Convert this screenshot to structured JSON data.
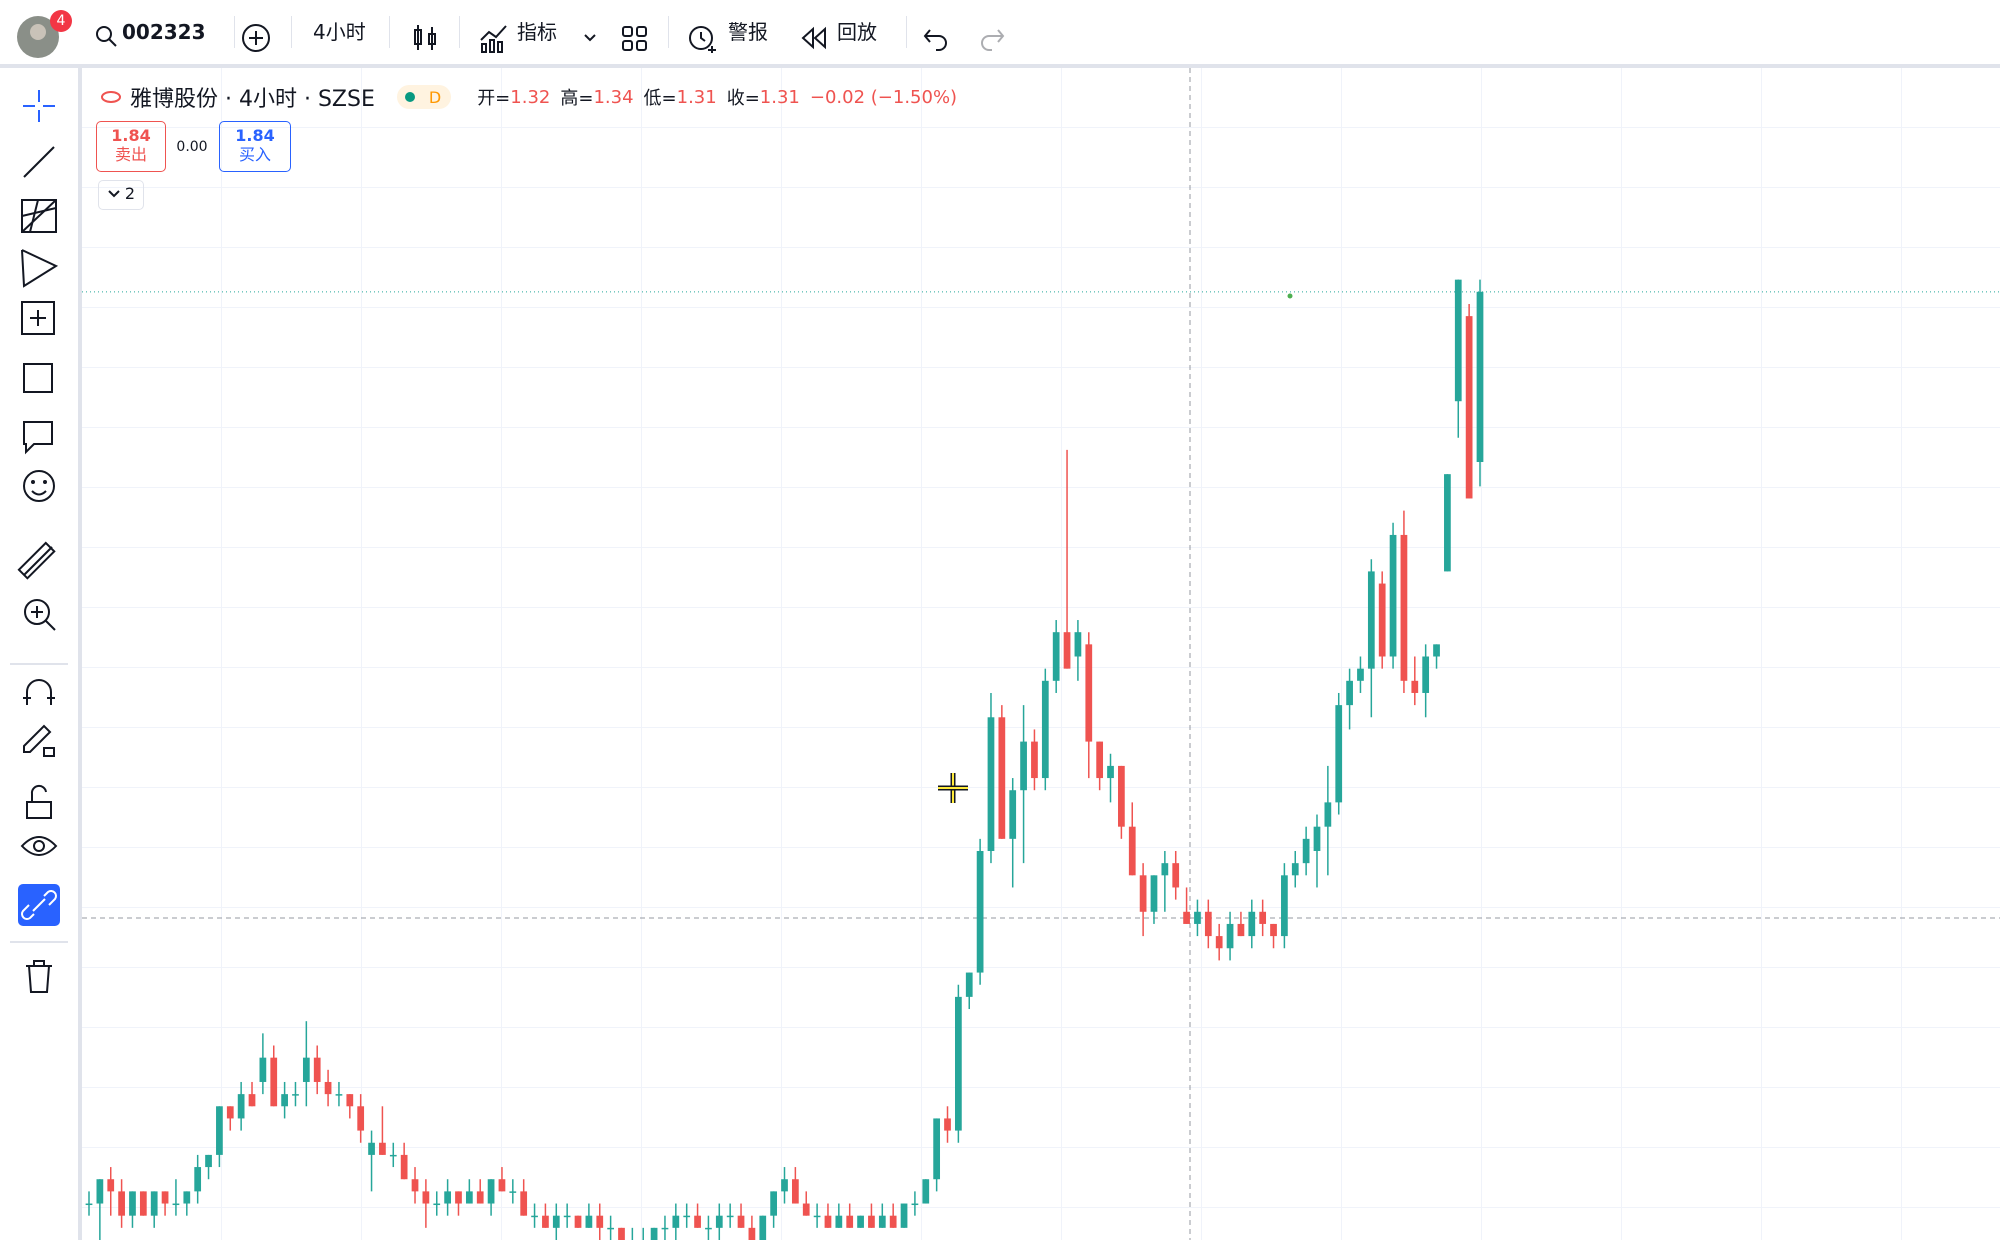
{
  "toolbar": {
    "badge": "4",
    "symbol": "002323",
    "interval": "4小时",
    "indicators": "指标",
    "alerts": "警报",
    "replay": "回放"
  },
  "legend": {
    "title": "雅博股份 · 4小时 · SZSE",
    "status": "D",
    "open_label": "开=",
    "open": 1.32,
    "high_label": "高=",
    "high": 1.34,
    "low_label": "低=",
    "low": 1.31,
    "close_label": "收=",
    "close": 1.31,
    "change": "−0.02 (−1.50%)"
  },
  "trade": {
    "sell_price": "1.84",
    "sell_label": "卖出",
    "spread": "0.00",
    "buy_price": "1.84",
    "buy_label": "买入"
  },
  "collapsed_count": "2",
  "chart_data": {
    "type": "candlestick",
    "up_color": "#26a69a",
    "down_color": "#ef5350",
    "ylim": [
      1.05,
      2.01
    ],
    "ohlc": [
      [
        1.08,
        1.09,
        1.07,
        1.08
      ],
      [
        1.08,
        1.1,
        1.05,
        1.1
      ],
      [
        1.1,
        1.11,
        1.07,
        1.09
      ],
      [
        1.09,
        1.1,
        1.06,
        1.07
      ],
      [
        1.07,
        1.09,
        1.06,
        1.09
      ],
      [
        1.09,
        1.09,
        1.07,
        1.07
      ],
      [
        1.07,
        1.09,
        1.06,
        1.09
      ],
      [
        1.09,
        1.09,
        1.07,
        1.08
      ],
      [
        1.08,
        1.1,
        1.07,
        1.08
      ],
      [
        1.08,
        1.09,
        1.07,
        1.09
      ],
      [
        1.09,
        1.12,
        1.08,
        1.11
      ],
      [
        1.11,
        1.12,
        1.1,
        1.12
      ],
      [
        1.12,
        1.16,
        1.11,
        1.16
      ],
      [
        1.16,
        1.16,
        1.14,
        1.15
      ],
      [
        1.15,
        1.18,
        1.14,
        1.17
      ],
      [
        1.17,
        1.18,
        1.16,
        1.16
      ],
      [
        1.18,
        1.22,
        1.17,
        1.2
      ],
      [
        1.2,
        1.21,
        1.16,
        1.16
      ],
      [
        1.16,
        1.18,
        1.15,
        1.17
      ],
      [
        1.17,
        1.18,
        1.16,
        1.17
      ],
      [
        1.18,
        1.23,
        1.16,
        1.2
      ],
      [
        1.2,
        1.21,
        1.17,
        1.18
      ],
      [
        1.18,
        1.19,
        1.16,
        1.17
      ],
      [
        1.17,
        1.18,
        1.16,
        1.17
      ],
      [
        1.17,
        1.17,
        1.15,
        1.16
      ],
      [
        1.16,
        1.17,
        1.13,
        1.14
      ],
      [
        1.12,
        1.14,
        1.09,
        1.13
      ],
      [
        1.13,
        1.16,
        1.12,
        1.12
      ],
      [
        1.12,
        1.13,
        1.11,
        1.12
      ],
      [
        1.12,
        1.13,
        1.1,
        1.1
      ],
      [
        1.1,
        1.11,
        1.08,
        1.09
      ],
      [
        1.09,
        1.1,
        1.06,
        1.08
      ],
      [
        1.08,
        1.09,
        1.07,
        1.08
      ],
      [
        1.08,
        1.1,
        1.07,
        1.09
      ],
      [
        1.09,
        1.09,
        1.07,
        1.08
      ],
      [
        1.08,
        1.1,
        1.08,
        1.09
      ],
      [
        1.09,
        1.1,
        1.08,
        1.08
      ],
      [
        1.08,
        1.1,
        1.07,
        1.1
      ],
      [
        1.1,
        1.11,
        1.09,
        1.09
      ],
      [
        1.09,
        1.1,
        1.08,
        1.09
      ],
      [
        1.09,
        1.1,
        1.07,
        1.07
      ],
      [
        1.07,
        1.08,
        1.06,
        1.07
      ],
      [
        1.07,
        1.08,
        1.06,
        1.06
      ],
      [
        1.06,
        1.08,
        1.05,
        1.07
      ],
      [
        1.07,
        1.08,
        1.06,
        1.07
      ],
      [
        1.07,
        1.07,
        1.06,
        1.06
      ],
      [
        1.06,
        1.08,
        1.06,
        1.07
      ],
      [
        1.07,
        1.08,
        1.05,
        1.06
      ],
      [
        1.06,
        1.07,
        1.05,
        1.06
      ],
      [
        1.06,
        1.06,
        1.05,
        1.05
      ],
      [
        1.05,
        1.06,
        1.04,
        1.05
      ],
      [
        1.05,
        1.06,
        1.04,
        1.05
      ],
      [
        1.05,
        1.06,
        1.04,
        1.06
      ],
      [
        1.06,
        1.07,
        1.05,
        1.06
      ],
      [
        1.06,
        1.08,
        1.05,
        1.07
      ],
      [
        1.07,
        1.08,
        1.06,
        1.07
      ],
      [
        1.07,
        1.08,
        1.06,
        1.06
      ],
      [
        1.06,
        1.07,
        1.05,
        1.06
      ],
      [
        1.06,
        1.08,
        1.05,
        1.07
      ],
      [
        1.07,
        1.08,
        1.06,
        1.07
      ],
      [
        1.07,
        1.08,
        1.06,
        1.06
      ],
      [
        1.06,
        1.07,
        1.05,
        1.05
      ],
      [
        1.05,
        1.07,
        1.05,
        1.07
      ],
      [
        1.07,
        1.09,
        1.06,
        1.09
      ],
      [
        1.09,
        1.11,
        1.08,
        1.1
      ],
      [
        1.1,
        1.11,
        1.08,
        1.08
      ],
      [
        1.08,
        1.09,
        1.07,
        1.07
      ],
      [
        1.07,
        1.08,
        1.06,
        1.07
      ],
      [
        1.07,
        1.08,
        1.06,
        1.06
      ],
      [
        1.06,
        1.08,
        1.06,
        1.07
      ],
      [
        1.07,
        1.08,
        1.06,
        1.06
      ],
      [
        1.06,
        1.07,
        1.06,
        1.07
      ],
      [
        1.07,
        1.08,
        1.06,
        1.06
      ],
      [
        1.06,
        1.08,
        1.06,
        1.07
      ],
      [
        1.07,
        1.08,
        1.06,
        1.06
      ],
      [
        1.06,
        1.08,
        1.06,
        1.08
      ],
      [
        1.08,
        1.09,
        1.07,
        1.08
      ],
      [
        1.08,
        1.1,
        1.08,
        1.1
      ],
      [
        1.1,
        1.15,
        1.09,
        1.15
      ],
      [
        1.15,
        1.16,
        1.13,
        1.14
      ],
      [
        1.14,
        1.26,
        1.13,
        1.25
      ],
      [
        1.25,
        1.27,
        1.24,
        1.27
      ],
      [
        1.27,
        1.38,
        1.26,
        1.37
      ],
      [
        1.37,
        1.5,
        1.36,
        1.48
      ],
      [
        1.48,
        1.49,
        1.38,
        1.38
      ],
      [
        1.38,
        1.43,
        1.34,
        1.42
      ],
      [
        1.42,
        1.49,
        1.36,
        1.46
      ],
      [
        1.46,
        1.47,
        1.42,
        1.43
      ],
      [
        1.43,
        1.52,
        1.42,
        1.51
      ],
      [
        1.51,
        1.56,
        1.5,
        1.55
      ],
      [
        1.55,
        1.7,
        1.52,
        1.52
      ],
      [
        1.53,
        1.56,
        1.51,
        1.55
      ],
      [
        1.54,
        1.55,
        1.43,
        1.46
      ],
      [
        1.46,
        1.46,
        1.42,
        1.43
      ],
      [
        1.43,
        1.45,
        1.41,
        1.44
      ],
      [
        1.44,
        1.44,
        1.38,
        1.39
      ],
      [
        1.39,
        1.41,
        1.35,
        1.35
      ],
      [
        1.35,
        1.36,
        1.3,
        1.32
      ],
      [
        1.32,
        1.35,
        1.31,
        1.35
      ],
      [
        1.35,
        1.37,
        1.32,
        1.36
      ],
      [
        1.36,
        1.37,
        1.33,
        1.34
      ],
      [
        1.32,
        1.34,
        1.31,
        1.31
      ],
      [
        1.31,
        1.33,
        1.3,
        1.32
      ],
      [
        1.32,
        1.33,
        1.29,
        1.3
      ],
      [
        1.3,
        1.31,
        1.28,
        1.29
      ],
      [
        1.29,
        1.32,
        1.28,
        1.31
      ],
      [
        1.31,
        1.32,
        1.3,
        1.3
      ],
      [
        1.3,
        1.33,
        1.29,
        1.32
      ],
      [
        1.32,
        1.33,
        1.3,
        1.31
      ],
      [
        1.31,
        1.31,
        1.29,
        1.3
      ],
      [
        1.3,
        1.36,
        1.29,
        1.35
      ],
      [
        1.35,
        1.37,
        1.34,
        1.36
      ],
      [
        1.36,
        1.39,
        1.35,
        1.38
      ],
      [
        1.37,
        1.4,
        1.34,
        1.39
      ],
      [
        1.39,
        1.44,
        1.35,
        1.41
      ],
      [
        1.41,
        1.5,
        1.4,
        1.49
      ],
      [
        1.49,
        1.52,
        1.47,
        1.51
      ],
      [
        1.51,
        1.53,
        1.5,
        1.52
      ],
      [
        1.52,
        1.61,
        1.48,
        1.6
      ],
      [
        1.59,
        1.6,
        1.52,
        1.53
      ],
      [
        1.53,
        1.64,
        1.52,
        1.63
      ],
      [
        1.63,
        1.65,
        1.5,
        1.51
      ],
      [
        1.51,
        1.53,
        1.49,
        1.5
      ],
      [
        1.5,
        1.54,
        1.48,
        1.53
      ],
      [
        1.53,
        1.54,
        1.52,
        1.54
      ],
      [
        1.6,
        1.68,
        1.6,
        1.68
      ],
      [
        1.74,
        1.84,
        1.71,
        1.84
      ],
      [
        1.81,
        1.82,
        1.66,
        1.66
      ],
      [
        1.69,
        1.84,
        1.67,
        1.83
      ]
    ]
  }
}
